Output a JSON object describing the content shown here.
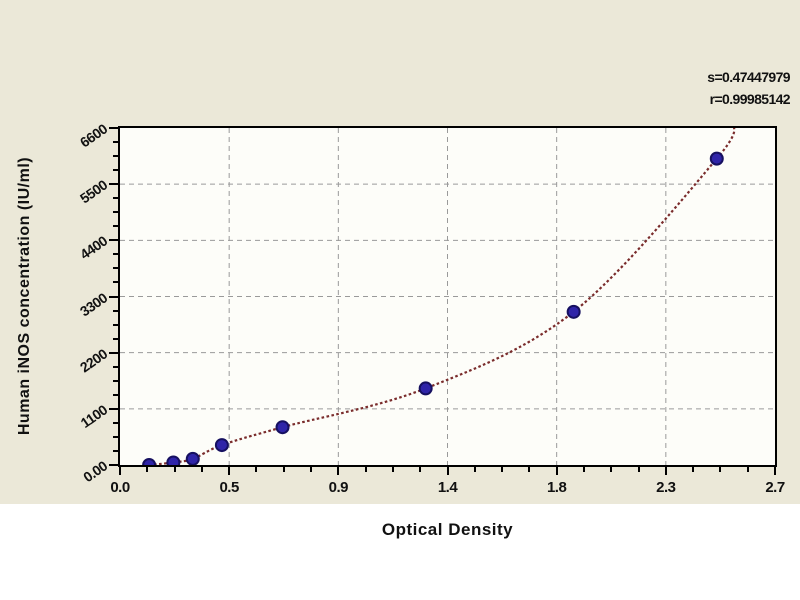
{
  "page": {
    "background_color": "#ffffff",
    "canvas_color": "#ebe8d8"
  },
  "chart_data": {
    "type": "scatter",
    "xlabel": "Optical Density",
    "ylabel": "Human iNOS concentration (IU/ml)",
    "x_range": [
      0,
      2.7
    ],
    "y_range": [
      0,
      6600
    ],
    "x_major_ticks": [
      0,
      0.45,
      0.9,
      1.35,
      1.8,
      2.25,
      2.7
    ],
    "x_tick_labels": [
      "0.0",
      "0.5",
      "0.9",
      "1.4",
      "1.8",
      "2.3",
      "2.7"
    ],
    "y_major_ticks": [
      0,
      1100,
      2200,
      3300,
      4400,
      5500,
      6600
    ],
    "y_tick_labels": [
      "0.00",
      "1100",
      "2200",
      "3300",
      "4400",
      "5500",
      "6600"
    ],
    "minor_ticks_per_interval": 3,
    "grid": "dashed gray lines at major ticks",
    "legend": "none",
    "points": [
      {
        "od": 0.12,
        "conc": 0
      },
      {
        "od": 0.22,
        "conc": 50
      },
      {
        "od": 0.3,
        "conc": 120
      },
      {
        "od": 0.42,
        "conc": 390
      },
      {
        "od": 0.67,
        "conc": 740
      },
      {
        "od": 1.26,
        "conc": 1500
      },
      {
        "od": 1.87,
        "conc": 3000
      },
      {
        "od": 2.46,
        "conc": 6000
      }
    ],
    "curve_extension": {
      "od": 2.53,
      "conc": 6700
    },
    "fit": {
      "s_text": "s=0.47447979",
      "r_text": "r=0.99985142"
    },
    "colors": {
      "curve": "#7a2c2c",
      "point_fill": "#2f24a8",
      "point_stroke": "#161060",
      "grid": "#9a9a9a",
      "frame": "#000000",
      "plot_background": "#fdfdf9"
    }
  }
}
